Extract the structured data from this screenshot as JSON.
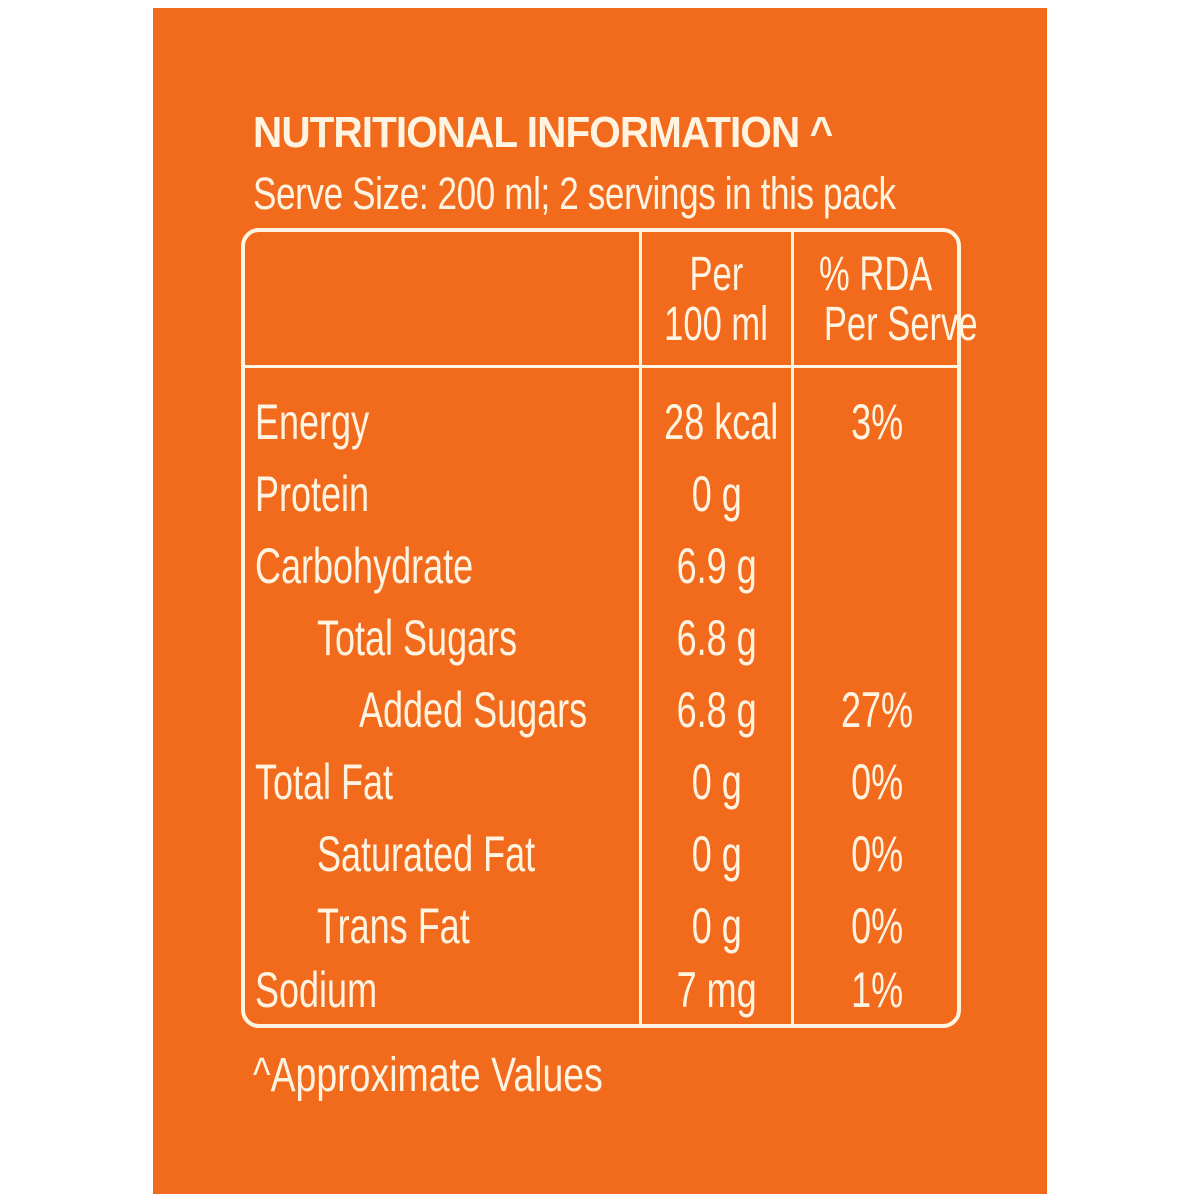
{
  "label": {
    "title": "NUTRITIONAL INFORMATION ^",
    "serve_size": "Serve Size: 200 ml; 2 servings in this pack",
    "header": {
      "per_line1": "Per",
      "per_line2": "100 ml",
      "rda_line1": "% RDA",
      "rda_line2": "Per Serve"
    },
    "rows": [
      {
        "name": "Energy",
        "per": "28 kcal",
        "rda": "3%"
      },
      {
        "name": "Protein",
        "per": "0 g",
        "rda": ""
      },
      {
        "name": "Carbohydrate",
        "per": "6.9 g",
        "rda": ""
      },
      {
        "name": "Total Sugars",
        "per": "6.8 g",
        "rda": ""
      },
      {
        "name": "Added Sugars",
        "per": "6.8 g",
        "rda": "27%"
      },
      {
        "name": "Total Fat",
        "per": "0 g",
        "rda": "0%"
      },
      {
        "name": "Saturated Fat",
        "per": "0 g",
        "rda": "0%"
      },
      {
        "name": "Trans Fat",
        "per": "0 g",
        "rda": "0%"
      },
      {
        "name": "Sodium",
        "per": "7 mg",
        "rda": "1%"
      }
    ],
    "footnote": "^Approximate Values"
  },
  "colors": {
    "background": "#f26a1b",
    "text": "#fff4e2"
  }
}
